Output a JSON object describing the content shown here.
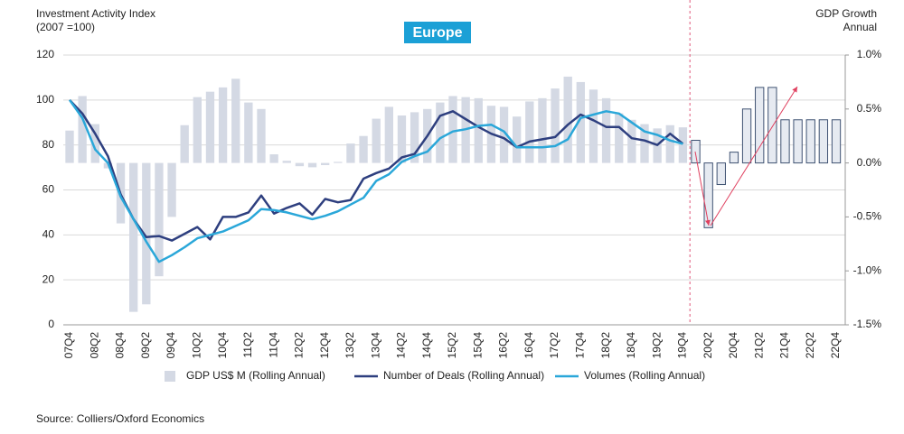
{
  "chart_data": {
    "type": "bar-line",
    "title": "Europe",
    "y_label": [
      "Investment Activity Index",
      "(2007 =100)"
    ],
    "y2_label": [
      "GDP Growth",
      "Annual"
    ],
    "source": "Source: Colliers/Oxford Economics",
    "categories": [
      "07Q4",
      null,
      "08Q2",
      null,
      "08Q4",
      null,
      "09Q2",
      null,
      "09Q4",
      null,
      "10Q2",
      null,
      "10Q4",
      null,
      "11Q2",
      null,
      "11Q4",
      null,
      "12Q2",
      null,
      "12Q4",
      null,
      "13Q2",
      null,
      "13Q4",
      null,
      "14Q2",
      null,
      "14Q4",
      null,
      "15Q2",
      null,
      "15Q4",
      null,
      "16Q2",
      null,
      "16Q4",
      null,
      "17Q2",
      null,
      "17Q4",
      null,
      "18Q2",
      null,
      "18Q4",
      null,
      "19Q2",
      null,
      "19Q4",
      null,
      "20Q2",
      null,
      "20Q4",
      null,
      "21Q2",
      null,
      "21Q4",
      null,
      "22Q2",
      null,
      "22Q4"
    ],
    "forecast_after": "19Q4",
    "ylim": [
      0,
      120
    ],
    "yticks": [
      0,
      20,
      40,
      60,
      80,
      100,
      120
    ],
    "y2lim": [
      -1.5,
      1.0
    ],
    "y2ticks": [
      {
        "value": -1.5,
        "label": "-1.5%"
      },
      {
        "value": -1.0,
        "label": "-1.0%"
      },
      {
        "value": -0.5,
        "label": "-0.5%"
      },
      {
        "value": 0,
        "label": "0.0%"
      },
      {
        "value": 0.5,
        "label": "0.5%"
      },
      {
        "value": 1.0,
        "label": "1.0%"
      }
    ],
    "grid": true,
    "series": [
      {
        "name": "GDP US$ M (Rolling Annual)",
        "type": "bar",
        "axis": "y2",
        "color": "#d4d9e4",
        "forecast_color": "#3f5272",
        "values": [
          0.3,
          0.62,
          0.36,
          -0.05,
          -0.56,
          -1.38,
          -1.31,
          -1.05,
          -0.5,
          0.35,
          0.61,
          0.66,
          0.7,
          0.78,
          0.56,
          0.5,
          0.08,
          0.02,
          -0.03,
          -0.04,
          -0.02,
          0.01,
          0.18,
          0.25,
          0.41,
          0.52,
          0.44,
          0.47,
          0.5,
          0.56,
          0.62,
          0.61,
          0.6,
          0.53,
          0.52,
          0.43,
          0.57,
          0.6,
          0.69,
          0.8,
          0.75,
          0.68,
          0.6,
          0.46,
          0.4,
          0.36,
          0.32,
          0.35,
          0.33,
          0.21,
          -0.6,
          -0.2,
          0.1,
          0.5,
          0.7,
          0.7,
          0.4,
          0.4,
          0.4,
          0.4,
          0.4
        ]
      },
      {
        "name": "Number of Deals (Rolling Annual)",
        "type": "line",
        "color": "#2e3f7f",
        "values": [
          100,
          94,
          85,
          75,
          58,
          47,
          39,
          39.5,
          37.5,
          40.5,
          43.5,
          38,
          48,
          48,
          50,
          57.5,
          49.5,
          52,
          54,
          49,
          56,
          54.5,
          55.5,
          65,
          67.5,
          69.5,
          74.5,
          76,
          84,
          93,
          95,
          91.5,
          88,
          85,
          83,
          79,
          81.5,
          82.5,
          83.5,
          89,
          93.5,
          91,
          88,
          88,
          83,
          82,
          80,
          85,
          80.5,
          null,
          null,
          null,
          null,
          null,
          null,
          null,
          null,
          null,
          null,
          null,
          null
        ]
      },
      {
        "name": "Volumes (Rolling Annual)",
        "type": "line",
        "color": "#2aa7d9",
        "values": [
          100,
          92,
          78,
          72,
          57,
          47,
          37,
          28,
          31,
          34.5,
          38.5,
          40,
          41.5,
          44,
          46.5,
          51.5,
          51,
          50,
          48.5,
          47,
          48.5,
          50.5,
          53.5,
          56.5,
          64,
          67,
          72.5,
          75,
          77,
          83,
          86,
          87,
          88.5,
          89,
          86,
          79,
          79,
          79,
          79.5,
          82.5,
          92,
          93.5,
          95,
          94,
          90,
          86,
          84.5,
          82,
          80.5,
          null,
          null,
          null,
          null,
          null,
          null,
          null,
          null,
          null,
          null,
          null,
          null
        ]
      }
    ]
  }
}
